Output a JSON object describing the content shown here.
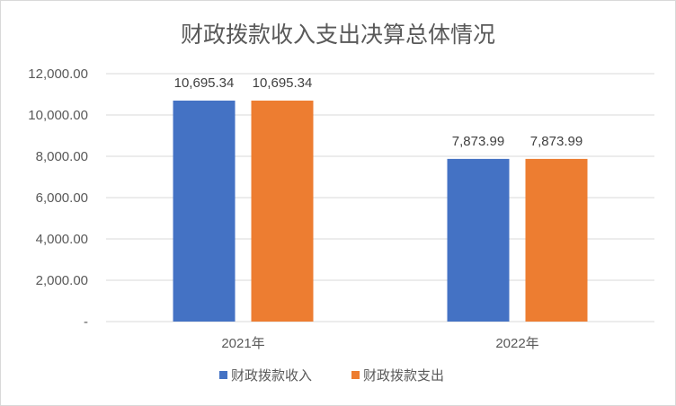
{
  "chart_data": {
    "type": "bar",
    "title": "财政拨款收入支出决算总体情况",
    "categories": [
      "2021年",
      "2022年"
    ],
    "series": [
      {
        "name": "财政拨款收入",
        "color": "#4472c4",
        "values": [
          10695.34,
          7873.99
        ],
        "labels": [
          "10,695.34",
          "7,873.99"
        ]
      },
      {
        "name": "财政拨款支出",
        "color": "#ed7d31",
        "values": [
          10695.34,
          7873.99
        ],
        "labels": [
          "10,695.34",
          "7,873.99"
        ]
      }
    ],
    "ylim": [
      0,
      12000
    ],
    "yticks": [
      0,
      2000,
      4000,
      6000,
      8000,
      10000,
      12000
    ],
    "ytick_labels": [
      "-",
      "2,000.00",
      "4,000.00",
      "6,000.00",
      "8,000.00",
      "10,000.00",
      "12,000.00"
    ],
    "grid": true,
    "legend": "bottom"
  }
}
